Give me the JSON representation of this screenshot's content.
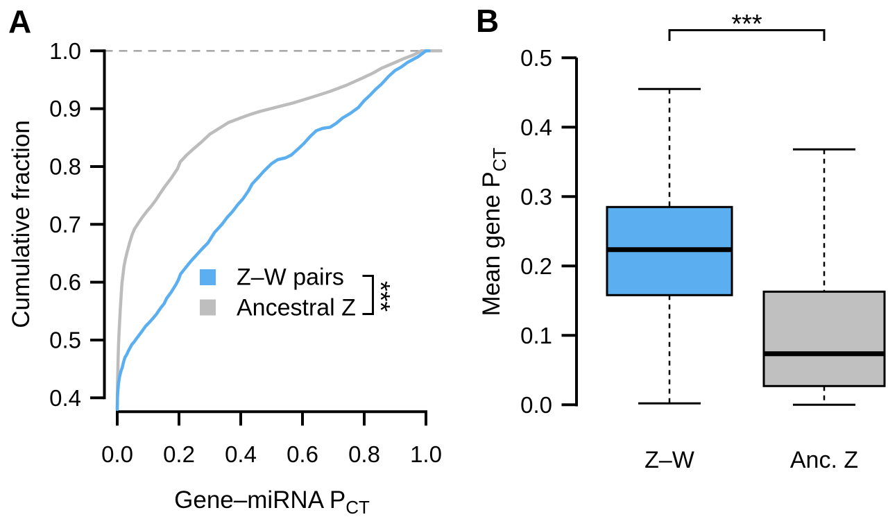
{
  "figure": {
    "panel_a_letter": "A",
    "panel_b_letter": "B"
  },
  "chart_data": [
    {
      "type": "line",
      "panel": "A",
      "subtype": "cumulative-distribution",
      "xlabel": "Gene–miRNA P",
      "xlabel_sub": "CT",
      "ylabel": "Cumulative fraction",
      "xlim": [
        0.0,
        1.0
      ],
      "ylim": [
        0.4,
        1.0
      ],
      "x_ticks": [
        "0.0",
        "0.2",
        "0.4",
        "0.6",
        "0.8",
        "1.0"
      ],
      "y_ticks": [
        "0.4",
        "0.5",
        "0.6",
        "0.7",
        "0.8",
        "0.9",
        "1.0"
      ],
      "grid": false,
      "reference_line": {
        "y": 1.0,
        "style": "dashed",
        "color": "#a9a9a9"
      },
      "legend": {
        "position": "center-right",
        "significance": "***",
        "entries": [
          {
            "label": "Z–W pairs",
            "color": "#5baff1"
          },
          {
            "label": "Ancestral Z",
            "color": "#bebebe"
          }
        ]
      },
      "series": [
        {
          "name": "Ancestral Z",
          "color": "#bcbcbc",
          "points": [
            [
              0,
              0.38
            ],
            [
              0.001,
              0.425
            ],
            [
              0.002,
              0.448
            ],
            [
              0.003,
              0.47
            ],
            [
              0.004,
              0.49
            ],
            [
              0.006,
              0.515
            ],
            [
              0.008,
              0.535
            ],
            [
              0.01,
              0.553
            ],
            [
              0.013,
              0.58
            ],
            [
              0.015,
              0.597
            ],
            [
              0.018,
              0.61
            ],
            [
              0.022,
              0.628
            ],
            [
              0.027,
              0.641
            ],
            [
              0.032,
              0.652
            ],
            [
              0.04,
              0.668
            ],
            [
              0.048,
              0.682
            ],
            [
              0.056,
              0.692
            ],
            [
              0.068,
              0.702
            ],
            [
              0.081,
              0.712
            ],
            [
              0.095,
              0.722
            ],
            [
              0.111,
              0.732
            ],
            [
              0.125,
              0.742
            ],
            [
              0.137,
              0.752
            ],
            [
              0.155,
              0.766
            ],
            [
              0.175,
              0.78
            ],
            [
              0.195,
              0.796
            ],
            [
              0.204,
              0.808
            ],
            [
              0.225,
              0.82
            ],
            [
              0.25,
              0.832
            ],
            [
              0.272,
              0.842
            ],
            [
              0.3,
              0.856
            ],
            [
              0.33,
              0.866
            ],
            [
              0.36,
              0.876
            ],
            [
              0.399,
              0.884
            ],
            [
              0.43,
              0.89
            ],
            [
              0.46,
              0.895
            ],
            [
              0.519,
              0.903
            ],
            [
              0.57,
              0.91
            ],
            [
              0.631,
              0.92
            ],
            [
              0.69,
              0.93
            ],
            [
              0.744,
              0.941
            ],
            [
              0.79,
              0.952
            ],
            [
              0.83,
              0.962
            ],
            [
              0.856,
              0.97
            ],
            [
              0.9,
              0.98
            ],
            [
              0.93,
              0.987
            ],
            [
              0.96,
              0.993
            ],
            [
              0.985,
              1
            ],
            [
              1.05,
              1
            ]
          ]
        },
        {
          "name": "Z–W pairs",
          "color": "#5baff1",
          "points": [
            [
              0,
              0.38
            ],
            [
              0.001,
              0.403
            ],
            [
              0.002,
              0.412
            ],
            [
              0.004,
              0.424
            ],
            [
              0.006,
              0.432
            ],
            [
              0.009,
              0.44
            ],
            [
              0.013,
              0.448
            ],
            [
              0.016,
              0.452
            ],
            [
              0.02,
              0.461
            ],
            [
              0.025,
              0.47
            ],
            [
              0.03,
              0.474
            ],
            [
              0.036,
              0.481
            ],
            [
              0.042,
              0.487
            ],
            [
              0.047,
              0.492
            ],
            [
              0.055,
              0.497
            ],
            [
              0.063,
              0.503
            ],
            [
              0.07,
              0.508
            ],
            [
              0.08,
              0.515
            ],
            [
              0.092,
              0.524
            ],
            [
              0.105,
              0.531
            ],
            [
              0.118,
              0.539
            ],
            [
              0.126,
              0.544
            ],
            [
              0.14,
              0.555
            ],
            [
              0.152,
              0.563
            ],
            [
              0.16,
              0.572
            ],
            [
              0.175,
              0.583
            ],
            [
              0.19,
              0.596
            ],
            [
              0.198,
              0.604
            ],
            [
              0.205,
              0.614
            ],
            [
              0.22,
              0.624
            ],
            [
              0.238,
              0.636
            ],
            [
              0.255,
              0.646
            ],
            [
              0.272,
              0.656
            ],
            [
              0.294,
              0.668
            ],
            [
              0.315,
              0.686
            ],
            [
              0.339,
              0.7
            ],
            [
              0.356,
              0.712
            ],
            [
              0.373,
              0.722
            ],
            [
              0.39,
              0.734
            ],
            [
              0.407,
              0.744
            ],
            [
              0.425,
              0.758
            ],
            [
              0.437,
              0.77
            ],
            [
              0.455,
              0.78
            ],
            [
              0.475,
              0.792
            ],
            [
              0.5,
              0.805
            ],
            [
              0.52,
              0.812
            ],
            [
              0.545,
              0.815
            ],
            [
              0.564,
              0.82
            ],
            [
              0.585,
              0.83
            ],
            [
              0.605,
              0.84
            ],
            [
              0.625,
              0.852
            ],
            [
              0.645,
              0.862
            ],
            [
              0.665,
              0.866
            ],
            [
              0.69,
              0.868
            ],
            [
              0.71,
              0.875
            ],
            [
              0.73,
              0.884
            ],
            [
              0.755,
              0.892
            ],
            [
              0.781,
              0.902
            ],
            [
              0.8,
              0.914
            ],
            [
              0.82,
              0.924
            ],
            [
              0.838,
              0.934
            ],
            [
              0.855,
              0.942
            ],
            [
              0.879,
              0.956
            ],
            [
              0.9,
              0.966
            ],
            [
              0.92,
              0.972
            ],
            [
              0.94,
              0.98
            ],
            [
              0.954,
              0.984
            ],
            [
              0.975,
              0.99
            ],
            [
              1,
              1
            ],
            [
              1.01,
              1
            ]
          ]
        }
      ]
    },
    {
      "type": "boxplot",
      "panel": "B",
      "ylabel": "Mean gene P",
      "ylabel_sub": "CT",
      "ylim": [
        0.0,
        0.5
      ],
      "y_ticks": [
        "0.0",
        "0.1",
        "0.2",
        "0.3",
        "0.4",
        "0.5"
      ],
      "grid": false,
      "significance": "***",
      "categories": [
        "Z–W",
        "Anc. Z"
      ],
      "boxes": [
        {
          "label": "Z–W",
          "color": "#5baff1",
          "whisker_low": 0.002,
          "q1": 0.158,
          "median": 0.2235,
          "q3": 0.285,
          "whisker_high": 0.455
        },
        {
          "label": "Anc. Z",
          "color": "#c0c0c0",
          "whisker_low": 0.0,
          "q1": 0.027,
          "median": 0.0735,
          "q3": 0.163,
          "whisker_high": 0.368
        }
      ]
    }
  ]
}
